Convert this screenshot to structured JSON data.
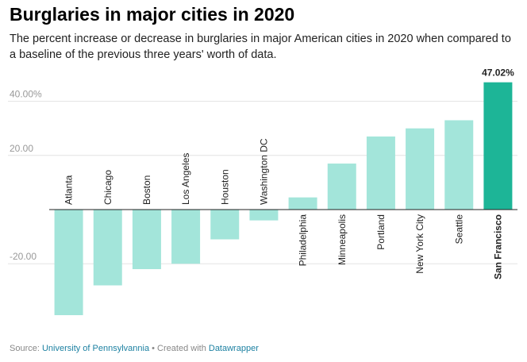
{
  "title": "Burglaries in major cities in 2020",
  "subtitle": "The percent increase or decrease in burglaries in major American cities in 2020 when compared to a baseline of the previous three years' worth of data.",
  "footer": {
    "source_prefix": "Source: ",
    "source_name": "University of Pennsylvannia",
    "separator": " • Created with ",
    "tool_name": "Datawrapper"
  },
  "colors": {
    "bar": "#a3e5da",
    "highlight": "#1db597",
    "grid": "#e3e3e3",
    "axis_text": "#999999",
    "zero_line": "#222222"
  },
  "chart_data": {
    "type": "bar",
    "categories": [
      "Atlanta",
      "Chicago",
      "Boston",
      "Los Angeles",
      "Houston",
      "Washington DC",
      "Philadelphia",
      "Minneapolis",
      "Portland",
      "New York City",
      "Seattle",
      "San Francisco"
    ],
    "values": [
      -39,
      -28,
      -22,
      -20,
      -11,
      -4,
      4.5,
      17,
      27,
      30,
      33,
      47.02
    ],
    "highlight": "San Francisco",
    "value_label": "47.02%",
    "yticks": [
      {
        "value": 40,
        "label": "40.00%"
      },
      {
        "value": 20,
        "label": "20.00"
      },
      {
        "value": -20,
        "label": "-20.00"
      }
    ],
    "ylim": [
      -42,
      50
    ],
    "grid": true
  }
}
